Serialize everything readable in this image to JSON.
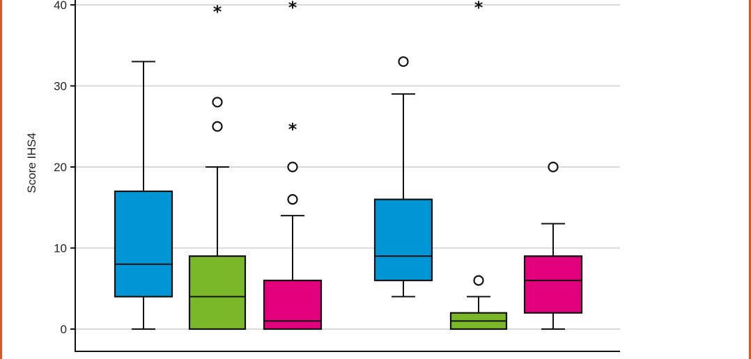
{
  "chart_data": {
    "type": "box",
    "ylabel": "Score IHS4",
    "yticks": [
      0,
      10,
      20,
      30,
      40
    ],
    "ylim": [
      -2.3,
      40.3
    ],
    "grid": true,
    "colors": {
      "blue": "#0096d6",
      "green": "#7ab82a",
      "magenta": "#e3007c",
      "frame": "#e0562b"
    },
    "boxes": [
      {
        "color": "blue",
        "min": 0,
        "q1": 4,
        "median": 8,
        "q3": 17,
        "max": 33,
        "outliers": []
      },
      {
        "color": "green",
        "min": 0,
        "q1": 0,
        "median": 4,
        "q3": 9,
        "max": 20,
        "outliers": [
          {
            "value": 25,
            "marker": "circle"
          },
          {
            "value": 28,
            "marker": "circle"
          },
          {
            "value": 39.5,
            "marker": "star"
          }
        ]
      },
      {
        "color": "magenta",
        "min": 0,
        "q1": 0,
        "median": 1,
        "q3": 6,
        "max": 14,
        "outliers": [
          {
            "value": 16,
            "marker": "circle"
          },
          {
            "value": 20,
            "marker": "circle"
          },
          {
            "value": 25,
            "marker": "star"
          },
          {
            "value": 40,
            "marker": "star"
          }
        ]
      },
      {
        "color": "blue",
        "min": 4,
        "q1": 6,
        "median": 9,
        "q3": 16,
        "max": 29,
        "outliers": [
          {
            "value": 33,
            "marker": "circle"
          }
        ]
      },
      {
        "color": "green",
        "min": 0,
        "q1": 0,
        "median": 1,
        "q3": 2,
        "max": 4,
        "outliers": [
          {
            "value": 6,
            "marker": "circle"
          },
          {
            "value": 40,
            "marker": "star"
          }
        ]
      },
      {
        "color": "magenta",
        "min": 0,
        "q1": 2,
        "median": 6,
        "q3": 9,
        "max": 13,
        "outliers": [
          {
            "value": 20,
            "marker": "circle"
          }
        ]
      }
    ]
  }
}
